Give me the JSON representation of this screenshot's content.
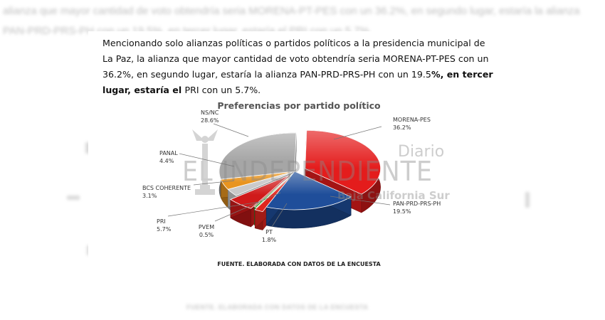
{
  "background": {
    "paragraph": "alianza que mayor cantidad de voto obtendría seria MORENA-PT-PES con un 36.2%, en segundo lugar, estaría la alianza PAN-PRD-PRS-PH con un 19.5%, en tercer lugar, estaría el PRI con un 5.7%.",
    "source": "FUENTE. ELABORADA CON DATOS DE LA ENCUESTA"
  },
  "paragraph": {
    "part1": "Mencionando solo alianzas políticas o partidos políticos a la presidencia municipal de La Paz, la alianza que mayor cantidad de voto obtendría seria MORENA-PT-PES con un 36.2%, en segundo lugar, estaría la alianza PAN-PRD-PRS-PH con un 19.5",
    "part2": "%, en tercer lugar, estaría el ",
    "part3": "PRI con un 5.7%."
  },
  "watermark": {
    "line1": "Diario",
    "line2": "EL INDEPENDIENTE",
    "line3": "Baja California Sur"
  },
  "chart_data": {
    "type": "pie",
    "title": "Preferencias por partido político",
    "series": [
      {
        "label": "MORENA-PES",
        "value": 36.2,
        "pct": "36.2%",
        "color": "#e41c1c"
      },
      {
        "label": "PAN-PRD-PRS-PH",
        "value": 19.5,
        "pct": "19.5%",
        "color": "#1f4e9a"
      },
      {
        "label": "PT",
        "value": 1.8,
        "pct": "1.8%",
        "color": "#e0261e"
      },
      {
        "label": "PVEM",
        "value": 0.5,
        "pct": "0.5%",
        "color": "#3fa535"
      },
      {
        "label": "PRI",
        "value": 5.7,
        "pct": "5.7%",
        "color": "#d01a1a"
      },
      {
        "label": "BCS COHERENTE",
        "value": 3.1,
        "pct": "3.1%",
        "color": "#c9c9c9"
      },
      {
        "label": "PANAL",
        "value": 4.4,
        "pct": "4.4%",
        "color": "#e8941f"
      },
      {
        "label": "NS/NC",
        "value": 28.6,
        "pct": "28.6%",
        "color": "#a6a6a6"
      }
    ],
    "extra_series": {
      "color": "#2b63b4"
    },
    "source": "FUENTE. ELABORADA CON DATOS DE LA ENCUESTA"
  }
}
